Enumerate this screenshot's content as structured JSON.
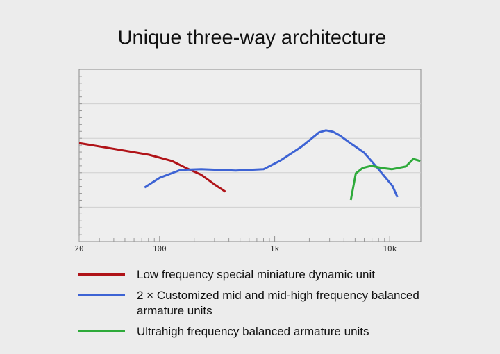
{
  "chart_data": {
    "type": "line",
    "title": "Unique three-way architecture",
    "xscale": "log",
    "xlim": [
      20,
      20000
    ],
    "ylim": [
      0,
      5
    ],
    "ygrid": [
      1,
      2,
      3,
      4
    ],
    "xticks": [
      20,
      100,
      {
        "value": 1000,
        "label": "1k"
      },
      {
        "value": 10000,
        "label": "10k"
      }
    ],
    "series": [
      {
        "name": "Low frequency special miniature dynamic unit",
        "color": "#b01318",
        "x": [
          20,
          81,
          128,
          174,
          230,
          303,
          373
        ],
        "values": [
          2.86,
          2.52,
          2.34,
          2.12,
          1.94,
          1.65,
          1.45
        ]
      },
      {
        "name": "2 × Customized mid and mid-high frequency balanced armature units",
        "color": "#3d63d4",
        "x": [
          74,
          100,
          152,
          230,
          459,
          800,
          1132,
          1717,
          2427,
          2790,
          3206,
          3683,
          4536,
          5987,
          7900,
          10570,
          11650
        ],
        "values": [
          1.57,
          1.85,
          2.08,
          2.1,
          2.06,
          2.1,
          2.36,
          2.76,
          3.17,
          3.23,
          3.19,
          3.08,
          2.86,
          2.58,
          2.12,
          1.61,
          1.29
        ]
      },
      {
        "name": "Ultrahigh frequency balanced armature units",
        "color": "#2eaa3a",
        "x": [
          4590,
          5070,
          5820,
          6880,
          8470,
          10420,
          13750,
          16030,
          18400
        ],
        "values": [
          1.21,
          1.98,
          2.14,
          2.2,
          2.14,
          2.1,
          2.18,
          2.4,
          2.34
        ]
      }
    ]
  }
}
